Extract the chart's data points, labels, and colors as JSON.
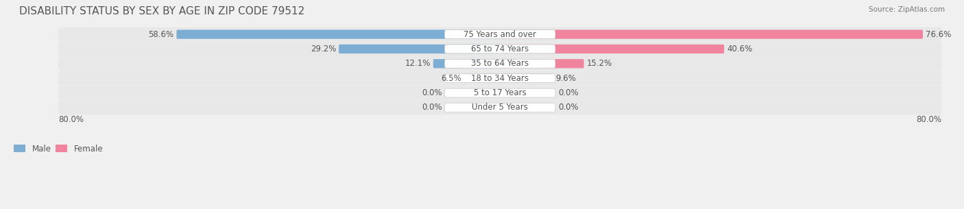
{
  "title": "DISABILITY STATUS BY SEX BY AGE IN ZIP CODE 79512",
  "source": "Source: ZipAtlas.com",
  "categories": [
    "Under 5 Years",
    "5 to 17 Years",
    "18 to 34 Years",
    "35 to 64 Years",
    "65 to 74 Years",
    "75 Years and over"
  ],
  "male_values": [
    0.0,
    0.0,
    6.5,
    12.1,
    29.2,
    58.6
  ],
  "female_values": [
    0.0,
    0.0,
    9.6,
    15.2,
    40.6,
    76.6
  ],
  "male_color": "#7eadd4",
  "female_color": "#f0849e",
  "male_label": "Male",
  "female_label": "Female",
  "x_max": 80.0,
  "background_color": "#f0f0f0",
  "bar_bg_color": "#e0e0e0",
  "title_fontsize": 11,
  "label_fontsize": 8.5,
  "value_fontsize": 8.5,
  "category_fontsize": 8.5
}
